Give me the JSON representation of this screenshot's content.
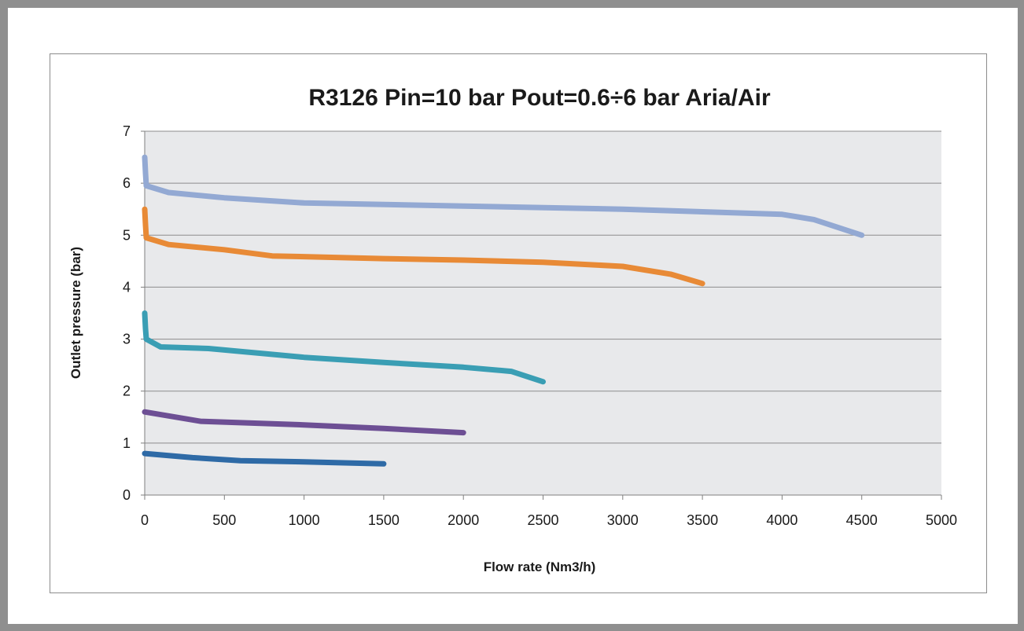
{
  "chart_data": {
    "type": "line",
    "title": "R3126  Pin=10 bar  Pout=0.6÷6 bar  Aria/Air",
    "xlabel": "Flow rate (Nm3/h)",
    "ylabel": "Outlet pressure (bar)",
    "xlim": [
      0,
      5000
    ],
    "ylim": [
      0,
      7
    ],
    "xticks": [
      0,
      500,
      1000,
      1500,
      2000,
      2500,
      3000,
      3500,
      4000,
      4500,
      5000
    ],
    "yticks": [
      0,
      1,
      2,
      3,
      4,
      5,
      6,
      7
    ],
    "grid": "horizontal",
    "legend": "none",
    "series": [
      {
        "color": "#2e6aa6",
        "points": [
          [
            0,
            0.8
          ],
          [
            300,
            0.72
          ],
          [
            600,
            0.66
          ],
          [
            1000,
            0.64
          ],
          [
            1500,
            0.6
          ]
        ]
      },
      {
        "color": "#6d4f94",
        "points": [
          [
            0,
            1.6
          ],
          [
            350,
            1.42
          ],
          [
            1000,
            1.35
          ],
          [
            1500,
            1.28
          ],
          [
            2000,
            1.2
          ]
        ]
      },
      {
        "color": "#3a9eb4",
        "points": [
          [
            0,
            3.5
          ],
          [
            5,
            3.2
          ],
          [
            10,
            3.0
          ],
          [
            100,
            2.85
          ],
          [
            400,
            2.82
          ],
          [
            1000,
            2.65
          ],
          [
            1500,
            2.55
          ],
          [
            2000,
            2.46
          ],
          [
            2300,
            2.38
          ],
          [
            2500,
            2.18
          ]
        ]
      },
      {
        "color": "#e88a36",
        "points": [
          [
            0,
            5.5
          ],
          [
            5,
            5.2
          ],
          [
            10,
            4.95
          ],
          [
            150,
            4.82
          ],
          [
            500,
            4.72
          ],
          [
            800,
            4.6
          ],
          [
            1500,
            4.55
          ],
          [
            2000,
            4.52
          ],
          [
            2500,
            4.48
          ],
          [
            3000,
            4.4
          ],
          [
            3300,
            4.25
          ],
          [
            3500,
            4.07
          ]
        ]
      },
      {
        "color": "#93a9d3",
        "points": [
          [
            0,
            6.5
          ],
          [
            5,
            6.2
          ],
          [
            10,
            5.95
          ],
          [
            150,
            5.82
          ],
          [
            500,
            5.72
          ],
          [
            1000,
            5.62
          ],
          [
            2000,
            5.56
          ],
          [
            3000,
            5.5
          ],
          [
            4000,
            5.4
          ],
          [
            4200,
            5.3
          ],
          [
            4500,
            5.0
          ]
        ]
      }
    ]
  }
}
